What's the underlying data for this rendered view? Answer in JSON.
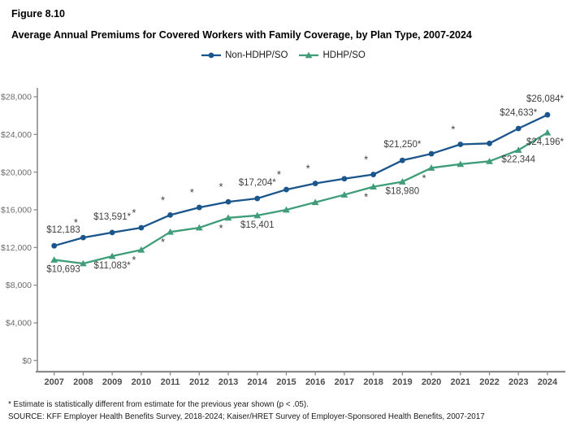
{
  "figure_label": "Figure 8.10",
  "title": "Average Annual Premiums for Covered Workers with Family Coverage, by Plan Type, 2007-2024",
  "legend": [
    {
      "label": "Non-HDHP/SO",
      "color": "#1a558c",
      "marker": "circle"
    },
    {
      "label": "HDHP/SO",
      "color": "#3f9d79",
      "marker": "triangle"
    }
  ],
  "footnote": "* Estimate is statistically different from estimate for the previous year shown (p < .05).",
  "source": "SOURCE: KFF Employer Health Benefits Survey, 2018-2024; Kaiser/HRET Survey of Employer-Sponsored Health Benefits, 2007-2017",
  "chart_data": {
    "type": "line",
    "x": [
      2007,
      2008,
      2009,
      2010,
      2011,
      2012,
      2013,
      2014,
      2015,
      2016,
      2017,
      2018,
      2019,
      2020,
      2021,
      2022,
      2023,
      2024
    ],
    "ylim": [
      0,
      28000
    ],
    "ytick_step": 4000,
    "ytick_labels": [
      "$0",
      "$4,000",
      "$8,000",
      "$12,000",
      "$16,000",
      "$20,000",
      "$24,000",
      "$28,000"
    ],
    "grid": false,
    "legend_position": "top-center",
    "series": [
      {
        "name": "Non-HDHP/SO",
        "color": "#1a558c",
        "marker": "circle",
        "values": [
          12183,
          13050,
          13591,
          14100,
          15450,
          16250,
          16850,
          17204,
          18150,
          18800,
          19300,
          19750,
          21250,
          21950,
          22950,
          23050,
          24633,
          26084
        ],
        "point_labels": {
          "2007": "$12,183",
          "2009": "$13,591*",
          "2014": "$17,204*",
          "2019": "$21,250*",
          "2023": "$24,633*",
          "2024": "$26,084*"
        },
        "asterisk_years": [
          2008,
          2010,
          2011,
          2012,
          2013,
          2015,
          2016,
          2018,
          2021
        ],
        "significant_years": [
          2008,
          2009,
          2010,
          2011,
          2012,
          2013,
          2014,
          2015,
          2016,
          2018,
          2019,
          2021,
          2023,
          2024
        ],
        "label_side": "above"
      },
      {
        "name": "HDHP/SO",
        "color": "#3f9d79",
        "marker": "triangle",
        "values": [
          10693,
          10300,
          11083,
          11750,
          13650,
          14100,
          15150,
          15401,
          16000,
          16800,
          17600,
          18450,
          18980,
          20450,
          20850,
          21150,
          22344,
          24196
        ],
        "point_labels": {
          "2007": "$10,693",
          "2009": "$11,083*",
          "2014": "$15,401",
          "2019": "$18,980",
          "2023": "$22,344",
          "2024": "$24,196*"
        },
        "asterisk_years": [
          2010,
          2011,
          2013,
          2018,
          2020
        ],
        "significant_years": [
          2009,
          2010,
          2011,
          2013,
          2018,
          2020,
          2024
        ],
        "label_side": "below"
      }
    ],
    "axis_color": "#8a8a8a",
    "tick_label_color": "#6b6b6b",
    "year_label_color": "#4d4d4d",
    "data_label_color": "#3f3f3f"
  }
}
